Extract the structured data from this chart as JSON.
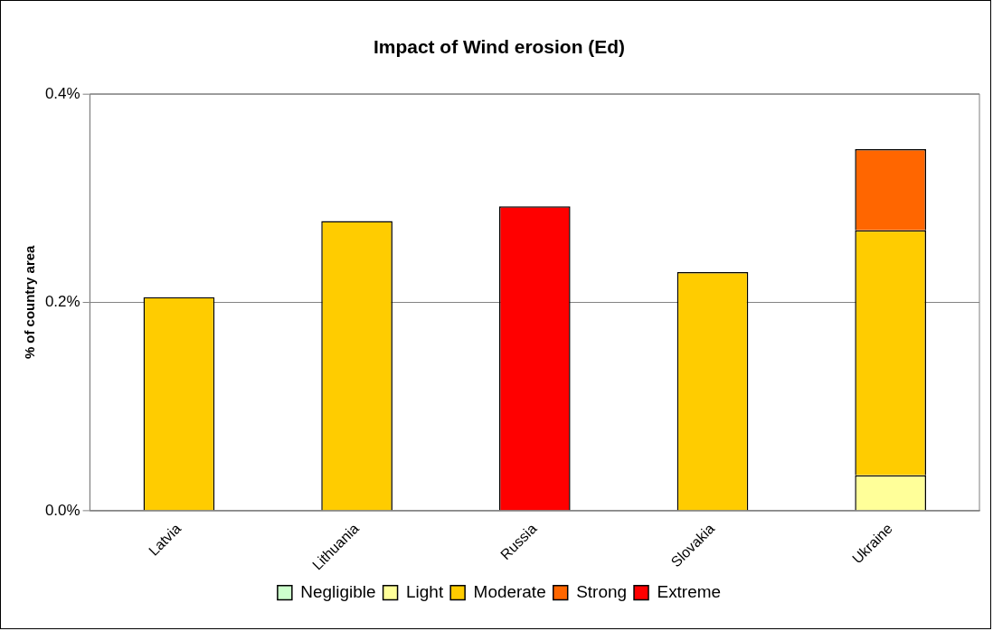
{
  "chart_data": {
    "type": "bar",
    "title": "Impact of Wind erosion (Ed)",
    "ylabel": "% of country area",
    "categories": [
      "Latvia",
      "Lithuania",
      "Russia",
      "Slovakia",
      "Ukraine"
    ],
    "stacked": true,
    "ylim": [
      0,
      0.4
    ],
    "yticks": [
      {
        "value": 0,
        "label": "0.0%"
      },
      {
        "value": 0.2,
        "label": "0.2%"
      },
      {
        "value": 0.4,
        "label": "0.4%"
      }
    ],
    "grid": "y",
    "legend": "bottom",
    "series": [
      {
        "name": "Negligible",
        "color": "#ccffcc",
        "values": [
          0,
          0,
          0,
          0,
          0
        ]
      },
      {
        "name": "Light",
        "color": "#ffff99",
        "values": [
          0,
          0,
          0,
          0,
          0.034
        ]
      },
      {
        "name": "Moderate",
        "color": "#ffcc00",
        "values": [
          0.205,
          0.278,
          0,
          0.229,
          0.235
        ]
      },
      {
        "name": "Strong",
        "color": "#ff6600",
        "values": [
          0,
          0,
          0,
          0,
          0.078
        ]
      },
      {
        "name": "Extreme",
        "color": "#ff0000",
        "values": [
          0,
          0,
          0.292,
          0,
          0
        ]
      }
    ]
  }
}
